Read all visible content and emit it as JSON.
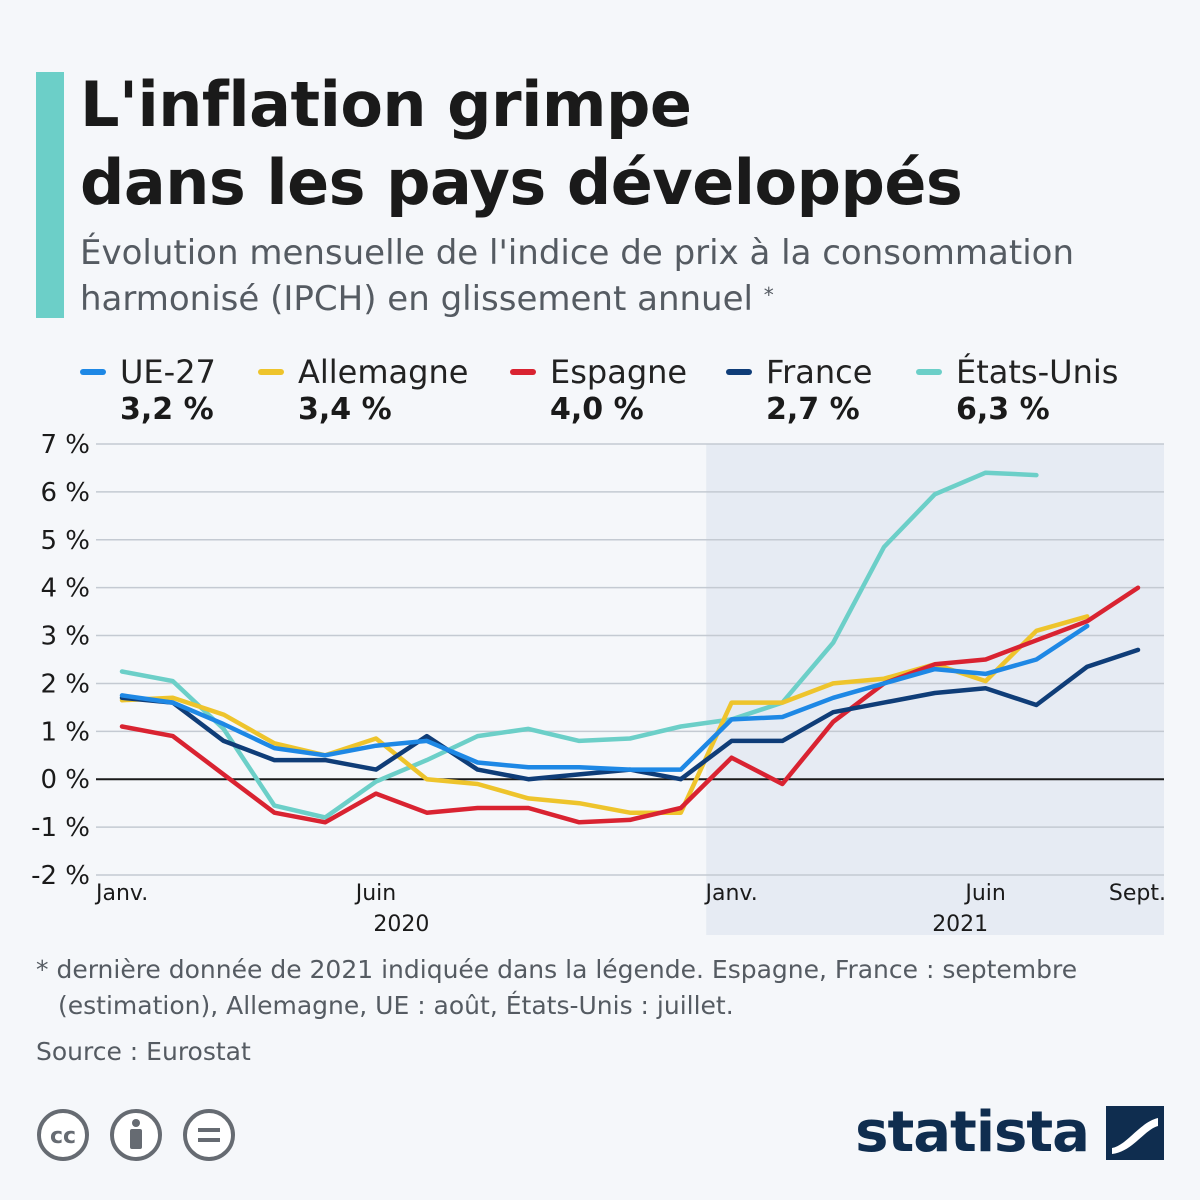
{
  "header": {
    "title_line1": "L'inflation grimpe",
    "title_line2": "dans les pays développés",
    "subtitle": "Évolution mensuelle de l'indice de prix à la consommation harmonisé (IPCH) en glissement annuel",
    "subtitle_mark": "*"
  },
  "legend": [
    {
      "name": "UE-27",
      "value": "3,2 %",
      "color": "#1e88e5"
    },
    {
      "name": "Allemagne",
      "value": "3,4 %",
      "color": "#eec42c"
    },
    {
      "name": "Espagne",
      "value": "4,0 %",
      "color": "#d92331"
    },
    {
      "name": "France",
      "value": "2,7 %",
      "color": "#0f3d78"
    },
    {
      "name": "États-Unis",
      "value": "6,3 %",
      "color": "#6ccfc8"
    }
  ],
  "chart_data": {
    "type": "line",
    "x": [
      "2020-01",
      "2020-02",
      "2020-03",
      "2020-04",
      "2020-05",
      "2020-06",
      "2020-07",
      "2020-08",
      "2020-09",
      "2020-10",
      "2020-11",
      "2020-12",
      "2021-01",
      "2021-02",
      "2021-03",
      "2021-04",
      "2021-05",
      "2021-06",
      "2021-07",
      "2021-08",
      "2021-09"
    ],
    "x_tick_labels": [
      {
        "label": "Janv.",
        "index": 0
      },
      {
        "label": "Juin",
        "index": 5
      },
      {
        "label": "Janv.",
        "index": 12
      },
      {
        "label": "Juin",
        "index": 17
      },
      {
        "label": "Sept.",
        "index": 20
      }
    ],
    "year_labels": [
      {
        "label": "2020",
        "index": 5.5
      },
      {
        "label": "2021",
        "index": 16.5
      }
    ],
    "y_ticks": [
      "7 %",
      "6 %",
      "5 %",
      "4 %",
      "3 %",
      "2 %",
      "1 %",
      "0 %",
      "-1 %",
      "-2 %"
    ],
    "ylim": [
      -2,
      7
    ],
    "grid": true,
    "highlight_band": {
      "from_index": 11.5,
      "to_index": 20.5
    },
    "series": [
      {
        "name": "États-Unis",
        "color": "#6ccfc8",
        "values": [
          2.25,
          2.05,
          1.05,
          -0.55,
          -0.8,
          -0.05,
          0.4,
          0.9,
          1.05,
          0.8,
          0.85,
          1.1,
          1.25,
          1.6,
          2.85,
          4.85,
          5.95,
          6.4,
          6.35,
          null,
          null
        ]
      },
      {
        "name": "Allemagne",
        "color": "#eec42c",
        "values": [
          1.65,
          1.7,
          1.35,
          0.75,
          0.5,
          0.85,
          0.0,
          -0.1,
          -0.4,
          -0.5,
          -0.7,
          -0.7,
          1.6,
          1.6,
          2.0,
          2.1,
          2.4,
          2.05,
          3.1,
          3.4,
          null
        ]
      },
      {
        "name": "Espagne",
        "color": "#d92331",
        "values": [
          1.1,
          0.9,
          0.1,
          -0.7,
          -0.9,
          -0.3,
          -0.7,
          -0.6,
          -0.6,
          -0.9,
          -0.85,
          -0.6,
          0.45,
          -0.1,
          1.2,
          2.0,
          2.4,
          2.5,
          2.9,
          3.3,
          4.0
        ]
      },
      {
        "name": "France",
        "color": "#0f3d78",
        "values": [
          1.7,
          1.6,
          0.8,
          0.4,
          0.4,
          0.2,
          0.9,
          0.2,
          0.0,
          0.1,
          0.2,
          0.0,
          0.8,
          0.8,
          1.4,
          1.6,
          1.8,
          1.9,
          1.55,
          2.35,
          2.7
        ]
      },
      {
        "name": "UE-27",
        "color": "#1e88e5",
        "values": [
          1.75,
          1.6,
          1.15,
          0.65,
          0.5,
          0.7,
          0.8,
          0.35,
          0.25,
          0.25,
          0.2,
          0.2,
          1.25,
          1.3,
          1.7,
          2.0,
          2.3,
          2.2,
          2.5,
          3.2,
          null
        ]
      }
    ]
  },
  "footnote": "* dernière donnée de 2021 indiquée dans la légende. Espagne, France : septembre (estimation), Allemagne, UE : août, États-Unis : juillet.",
  "source": "Source : Eurostat",
  "logo": {
    "text": "statista"
  },
  "license_icons": [
    "creative-commons-icon",
    "attribution-icon",
    "no-derivatives-icon"
  ]
}
